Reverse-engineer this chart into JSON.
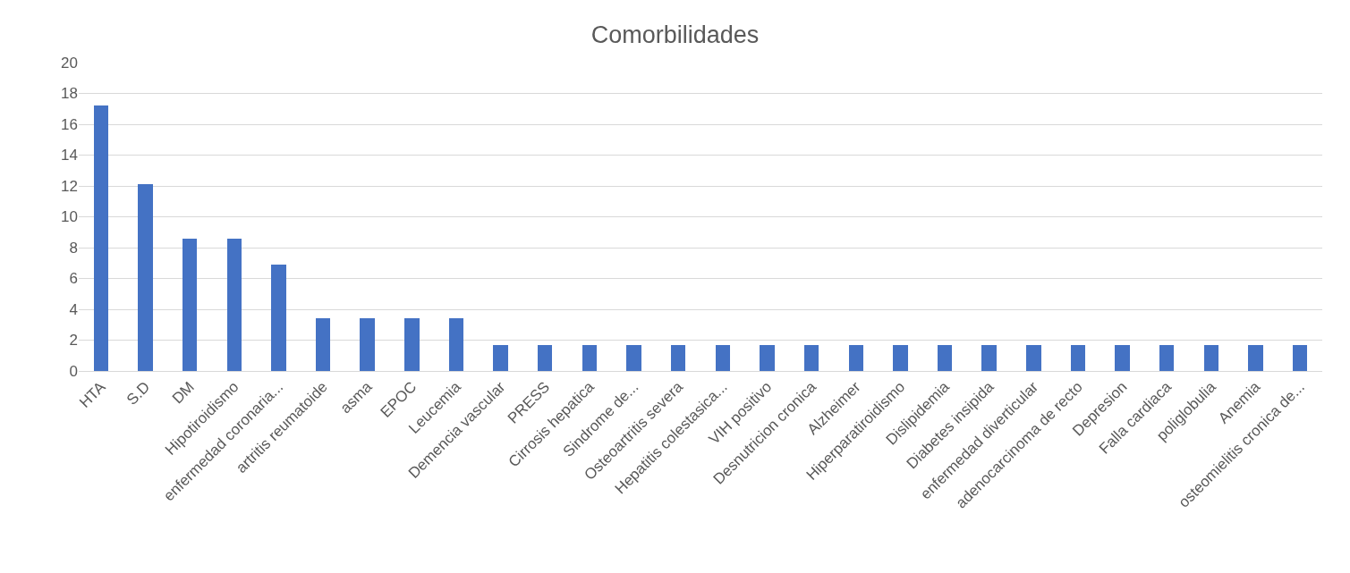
{
  "chart_data": {
    "type": "bar",
    "title": "Comorbilidades",
    "categories": [
      "HTA",
      "S.D",
      "DM",
      "Hipotiroidismo",
      "enfermedad coronaria...",
      "artritis reumatoide",
      "asma",
      "EPOC",
      "Leucemia",
      "Demencia vascular",
      "PRESS",
      "Cirrosis hepatica",
      "Sindrome de...",
      "Osteoartritis severa",
      "Hepatitis colestasica...",
      "VIH positivo",
      "Desnutricion cronica",
      "Alzheimer",
      "Hiperparatiroidismo",
      "Dislipidemia",
      "Diabetes insipida",
      "enfermedad diverticular",
      "adenocarcinoma de recto",
      "Depresion",
      "Falla cardiaca",
      "poliglobulia",
      "Anemia",
      "osteomielitis cronica de..."
    ],
    "values": [
      17.2,
      12.1,
      8.6,
      8.6,
      6.9,
      3.4,
      3.4,
      3.4,
      3.4,
      1.7,
      1.7,
      1.7,
      1.7,
      1.7,
      1.7,
      1.7,
      1.7,
      1.7,
      1.7,
      1.7,
      1.7,
      1.7,
      1.7,
      1.7,
      1.7,
      1.7,
      1.7,
      1.7
    ],
    "color": "#4472c4",
    "ylim": [
      0,
      20
    ],
    "yticks": [
      0,
      2,
      4,
      6,
      8,
      10,
      12,
      14,
      16,
      18,
      20
    ],
    "grid": "y"
  }
}
